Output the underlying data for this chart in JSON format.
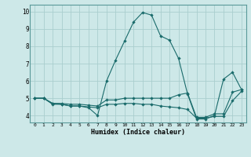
{
  "xlabel": "Humidex (Indice chaleur)",
  "bg_color": "#cde8e8",
  "grid_color": "#aacece",
  "line_color": "#1a6b6b",
  "xlim": [
    -0.5,
    23.5
  ],
  "ylim": [
    3.6,
    10.4
  ],
  "xticks": [
    0,
    1,
    2,
    3,
    4,
    5,
    6,
    7,
    8,
    9,
    10,
    11,
    12,
    13,
    14,
    15,
    16,
    17,
    18,
    19,
    20,
    21,
    22,
    23
  ],
  "yticks": [
    4,
    5,
    6,
    7,
    8,
    9,
    10
  ],
  "line1_x": [
    0,
    1,
    2,
    3,
    4,
    5,
    6,
    7,
    8,
    9,
    10,
    11,
    12,
    13,
    14,
    15,
    16,
    17,
    18,
    19,
    20,
    21,
    22,
    23
  ],
  "line1_y": [
    5.0,
    5.0,
    4.7,
    4.65,
    4.55,
    4.55,
    4.45,
    4.0,
    6.0,
    7.2,
    8.3,
    9.4,
    9.95,
    9.8,
    8.6,
    8.35,
    7.3,
    5.25,
    3.8,
    3.8,
    4.0,
    6.1,
    6.5,
    5.5
  ],
  "line2_x": [
    0,
    1,
    2,
    3,
    4,
    5,
    6,
    7,
    8,
    9,
    10,
    11,
    12,
    13,
    14,
    15,
    16,
    17,
    18,
    19,
    20,
    21,
    22,
    23
  ],
  "line2_y": [
    5.0,
    5.0,
    4.7,
    4.7,
    4.65,
    4.65,
    4.6,
    4.55,
    4.9,
    4.9,
    5.0,
    5.0,
    5.0,
    5.0,
    5.0,
    5.0,
    5.2,
    5.3,
    3.9,
    3.9,
    4.1,
    4.1,
    5.35,
    5.5
  ],
  "line3_x": [
    0,
    1,
    2,
    3,
    4,
    5,
    6,
    7,
    8,
    9,
    10,
    11,
    12,
    13,
    14,
    15,
    16,
    17,
    18,
    19,
    20,
    21,
    22,
    23
  ],
  "line3_y": [
    5.0,
    5.0,
    4.65,
    4.65,
    4.55,
    4.55,
    4.5,
    4.45,
    4.65,
    4.65,
    4.7,
    4.7,
    4.65,
    4.65,
    4.55,
    4.5,
    4.45,
    4.35,
    3.85,
    3.85,
    3.95,
    3.95,
    4.85,
    5.4
  ]
}
